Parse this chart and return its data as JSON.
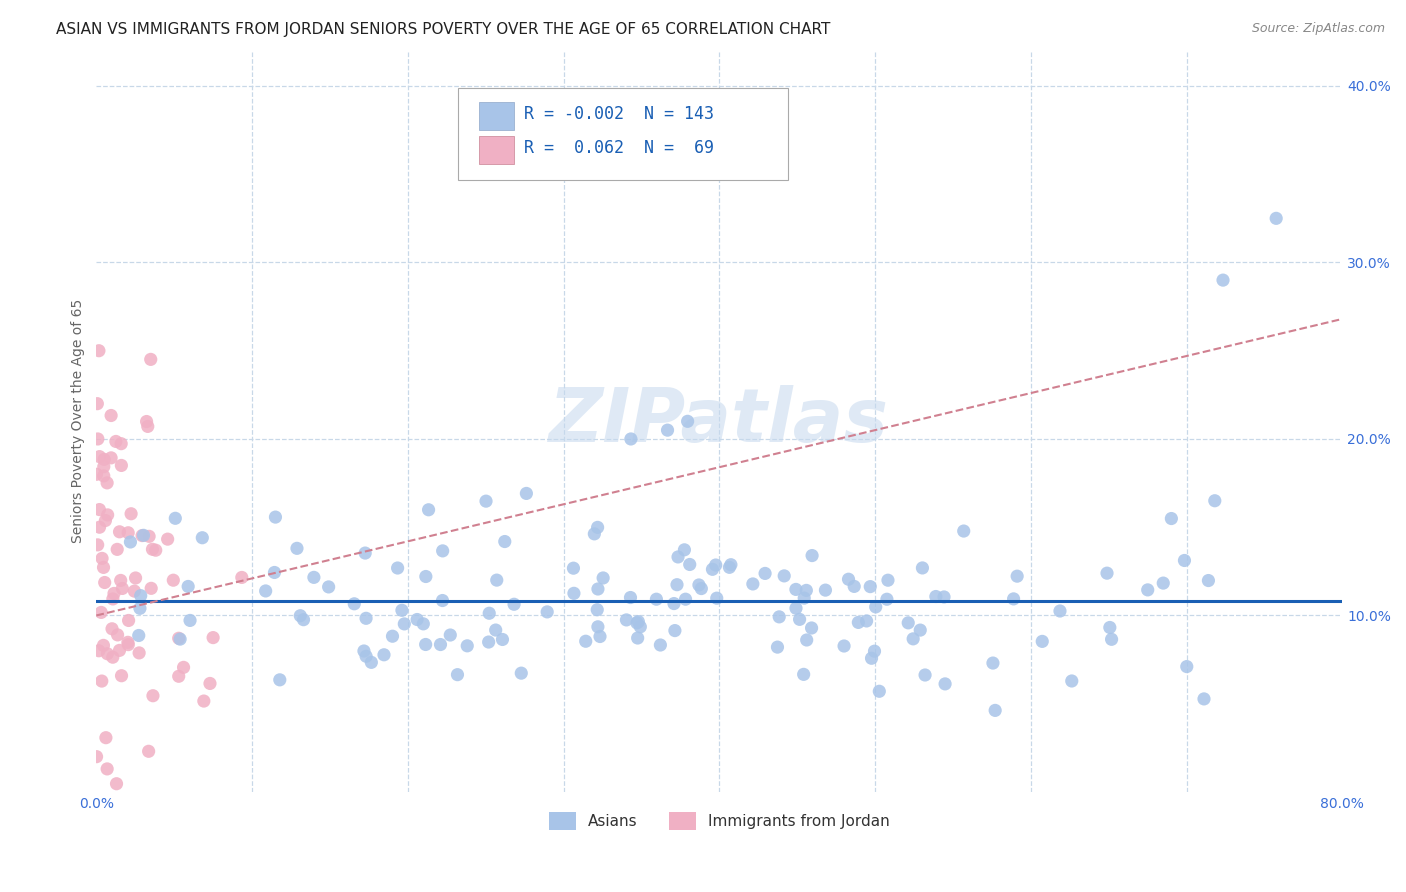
{
  "title": "ASIAN VS IMMIGRANTS FROM JORDAN SENIORS POVERTY OVER THE AGE OF 65 CORRELATION CHART",
  "source": "Source: ZipAtlas.com",
  "ylabel": "Seniors Poverty Over the Age of 65",
  "xlim": [
    0.0,
    0.8
  ],
  "ylim": [
    0.0,
    0.42
  ],
  "xticks": [
    0.0,
    0.1,
    0.2,
    0.3,
    0.4,
    0.5,
    0.6,
    0.7,
    0.8
  ],
  "yticks": [
    0.0,
    0.1,
    0.2,
    0.3,
    0.4
  ],
  "asian_color": "#a8c4e8",
  "jordan_color": "#f0b0c4",
  "asian_line_color": "#1a5fb4",
  "jordan_line_color": "#d08090",
  "grid_color": "#c8d8e8",
  "legend_r_asian": "-0.002",
  "legend_n_asian": "143",
  "legend_r_jordan": "0.062",
  "legend_n_jordan": "69",
  "watermark_text": "ZIPatlas",
  "background_color": "#ffffff",
  "title_fontsize": 11,
  "axis_label_fontsize": 10,
  "tick_fontsize": 10,
  "legend_fontsize": 12,
  "source_fontsize": 9,
  "asian_scatter_seed": 42,
  "jordan_scatter_seed": 99,
  "asian_trend_y0": 0.108,
  "asian_trend_y1": 0.108,
  "jordan_trend_y0": 0.1,
  "jordan_trend_y1": 0.268
}
